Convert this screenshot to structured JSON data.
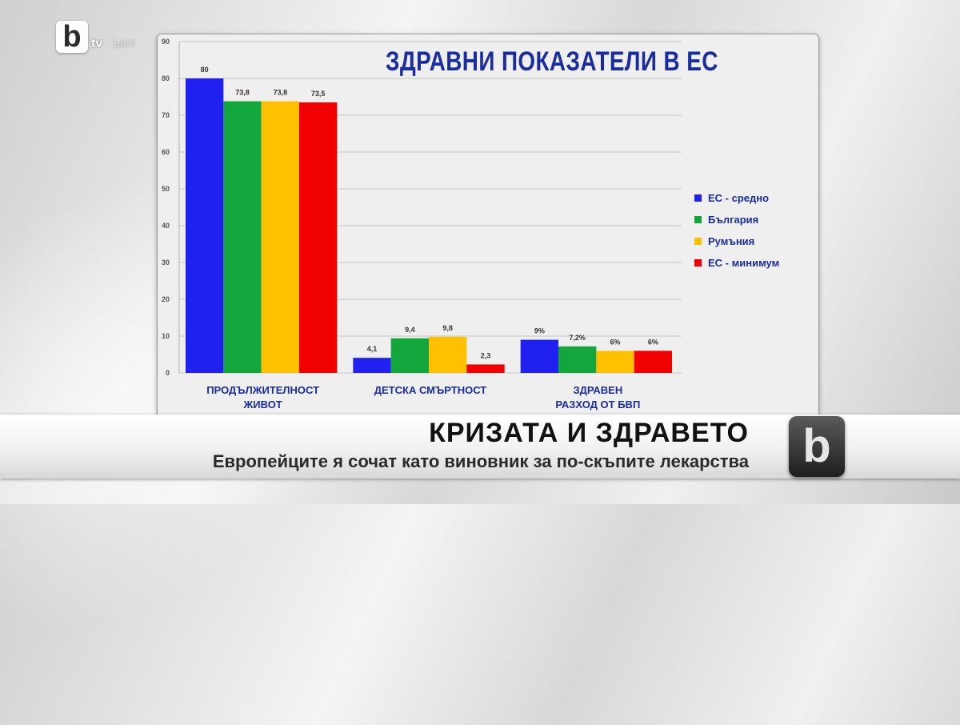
{
  "broadcast": {
    "logo_letter": "b",
    "logo_channel": "tv",
    "hd_label": "1dX?",
    "corner_logo_glyph": "b"
  },
  "lower_third": {
    "headline": "КРИЗАТА И ЗДРАВЕТО",
    "subline": "Европейците я сочат като виновник за по-скъпите лекарства"
  },
  "colors": {
    "eu_average": "#2020f0",
    "bulgaria": "#13a63c",
    "romania": "#ffc000",
    "eu_minimum": "#f00000",
    "title_blue": "#1a2d9e"
  },
  "chart_data": {
    "type": "bar",
    "title": "ЗДРАВНИ ПОКАЗАТЕЛИ В ЕС",
    "categories": [
      "ПРОДЪЛЖИТЕЛНОСТ ЖИВОТ",
      "ДЕТСКА СМЪРТНОСТ",
      "ЗДРАВЕН РАЗХОД ОТ БВП"
    ],
    "series": [
      {
        "name": "ЕС - средно",
        "values": [
          80,
          4.1,
          9
        ],
        "labels": [
          "80",
          "4,1",
          "9%"
        ],
        "color": "#2020f0"
      },
      {
        "name": "България",
        "values": [
          73.8,
          9.4,
          7.2
        ],
        "labels": [
          "73,8",
          "9,4",
          "7,2%"
        ],
        "color": "#13a63c"
      },
      {
        "name": "Румъния",
        "values": [
          73.8,
          9.8,
          6
        ],
        "labels": [
          "73,8",
          "9,8",
          "6%"
        ],
        "color": "#ffc000"
      },
      {
        "name": "ЕС - минимум",
        "values": [
          73.5,
          2.3,
          6
        ],
        "labels": [
          "73,5",
          "2,3",
          "6%"
        ],
        "color": "#f00000"
      }
    ],
    "ylim": [
      0,
      90
    ],
    "yticks": [
      0,
      10,
      20,
      30,
      40,
      50,
      60,
      70,
      80,
      90
    ],
    "grid": true,
    "legend": "right"
  }
}
